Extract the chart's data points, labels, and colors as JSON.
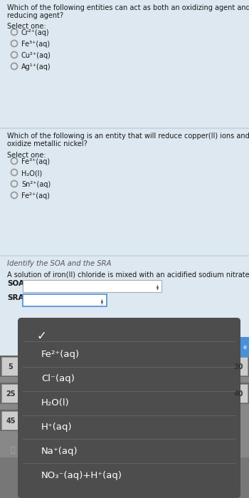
{
  "bg_color": "#dde8f0",
  "q1_text_line1": "Which of the following entities can act as both an oxidizing agent and as a",
  "q1_text_line2": "reducing agent?",
  "q1_select": "Select one:",
  "q1_options": [
    "Cr²⁺(aq)",
    "Fe³⁺(aq)",
    "Cu²⁺(aq)",
    "Ag¹⁺(aq)"
  ],
  "q2_text_line1": "Which of the following is an entity that will reduce copper(II) ions and also",
  "q2_text_line2": "oxidize metallic nickel?",
  "q2_select": "Select one:",
  "q2_options": [
    "Fe³⁺(aq)",
    "H₂O(l)",
    "Sn²⁺(aq)",
    "Fe²⁺(aq)"
  ],
  "q3_italic": "Identify the SOA and the SRA",
  "q3_text": "A solution of iron(II) chloride is mixed with an acidified sodium nitrate solution.",
  "soa_label": "SOA",
  "sra_label": "SRA",
  "dropdown_bg": "#4d4d4d",
  "dropdown_text_color": "#ffffff",
  "dropdown_items": [
    "Fe²⁺(aq)",
    "Cl⁻(aq)",
    "H₂O(l)",
    "H⁺(aq)",
    "Na⁺(aq)",
    "NO₃⁻(aq)+H⁺(aq)"
  ],
  "checkmark": "✓",
  "sep_color": "#666666",
  "blue_btn_color": "#4a90d9",
  "soa_box_color": "#aaaaaa",
  "sra_box_color": "#4a90d9",
  "radio_color": "#999999",
  "kbd_bg": "#5a5a5a",
  "kbd_label_color": "#cccccc",
  "lock_color": "#888888"
}
